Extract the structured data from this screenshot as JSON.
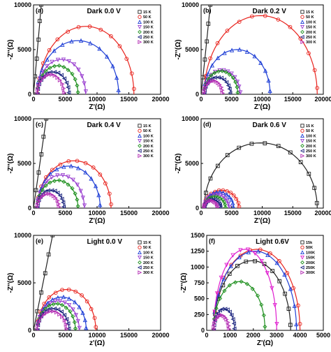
{
  "figure": {
    "panels_desc": "Six Nyquist impedance panels"
  },
  "chart_data": [
    {
      "type": "scatter",
      "panel_label": "(a)",
      "condition": "Dark 0.0 V",
      "xlabel": "Z'(Ω)",
      "ylabel": "-Z''(Ω)",
      "xlim": [
        0,
        20000
      ],
      "ylim": [
        0,
        10000
      ],
      "xticks": [
        "0",
        "5000",
        "10000",
        "15000",
        "20000"
      ],
      "yticks": [
        "0",
        "5000",
        "10000"
      ],
      "legend_position": "upper right",
      "series": [
        {
          "name": "15 K",
          "marker": "square",
          "color": "#222222",
          "type": "line",
          "x": [
            0,
            250,
            500,
            750,
            1000,
            1200
          ],
          "y": [
            0,
            2000,
            4000,
            6100,
            8200,
            10000
          ]
        },
        {
          "name": "50 K",
          "marker": "circle",
          "color": "#e8231d",
          "type": "arc",
          "x0": 700,
          "x1": 15800,
          "ymax": 7600
        },
        {
          "name": "100 K",
          "marker": "triangle",
          "color": "#1f3fd6",
          "type": "arc",
          "x0": 600,
          "x1": 13400,
          "ymax": 6000
        },
        {
          "name": "150 K",
          "marker": "tri-down",
          "color": "#9a3fd0",
          "type": "arc",
          "x0": 600,
          "x1": 8200,
          "ymax": 3900
        },
        {
          "name": "200 K",
          "marker": "diamond",
          "color": "#1d8f1d",
          "type": "arc",
          "x0": 600,
          "x1": 7000,
          "ymax": 3200
        },
        {
          "name": "250 K",
          "marker": "tri-left",
          "color": "#1a237e",
          "type": "arc",
          "x0": 600,
          "x1": 5600,
          "ymax": 2500
        },
        {
          "name": "300 K",
          "marker": "tri-right",
          "color": "#b42fb4",
          "type": "arc",
          "x0": 600,
          "x1": 4800,
          "ymax": 2200
        }
      ]
    },
    {
      "type": "scatter",
      "panel_label": "(b)",
      "condition": "Dark 0.2 V",
      "xlabel": "Z'(Ω)",
      "ylabel": "-Z''(Ω)",
      "xlim": [
        0,
        20000
      ],
      "ylim": [
        0,
        10000
      ],
      "xticks": [
        "0",
        "5000",
        "10000",
        "15000",
        "20000"
      ],
      "yticks": [
        "0",
        "5000",
        "10000"
      ],
      "legend_position": "upper right",
      "series": [
        {
          "name": "15 K",
          "marker": "square",
          "color": "#222222",
          "type": "line",
          "x": [
            0,
            300,
            600,
            900,
            1200,
            1500
          ],
          "y": [
            0,
            1900,
            3900,
            5900,
            7900,
            10000
          ]
        },
        {
          "name": "50 K",
          "marker": "circle",
          "color": "#e8231d",
          "type": "arc",
          "x0": 500,
          "x1": 19000,
          "ymax": 8800
        },
        {
          "name": "100 K",
          "marker": "triangle",
          "color": "#1f3fd6",
          "type": "arc",
          "x0": 500,
          "x1": 11300,
          "ymax": 5000
        },
        {
          "name": "150 K",
          "marker": "tri-down",
          "color": "#9a3fd0",
          "type": "arc",
          "x0": 500,
          "x1": 6400,
          "ymax": 2700
        },
        {
          "name": "200 K",
          "marker": "diamond",
          "color": "#1d8f1d",
          "type": "arc",
          "x0": 500,
          "x1": 6000,
          "ymax": 2600
        },
        {
          "name": "250 K",
          "marker": "tri-left",
          "color": "#1a237e",
          "type": "arc",
          "x0": 500,
          "x1": 4800,
          "ymax": 1900
        },
        {
          "name": "300 K",
          "marker": "tri-right",
          "color": "#b42fb4",
          "type": "arc",
          "x0": 500,
          "x1": 3500,
          "ymax": 1500
        }
      ]
    },
    {
      "type": "scatter",
      "panel_label": "(c)",
      "condition": "Dark 0.4 V",
      "xlabel": "Z'(Ω)",
      "ylabel": "-Z''(Ω)",
      "xlim": [
        0,
        20000
      ],
      "ylim": [
        0,
        10000
      ],
      "xticks": [
        "0",
        "5000",
        "10000",
        "15000",
        "20000"
      ],
      "yticks": [
        "0",
        "5000",
        "10000"
      ],
      "legend_position": "right",
      "series": [
        {
          "name": "15 K",
          "marker": "square",
          "color": "#222222",
          "type": "line",
          "x": [
            0,
            400,
            800,
            1200,
            1600,
            2000
          ],
          "y": [
            0,
            2000,
            4000,
            6000,
            8000,
            10000
          ]
        },
        {
          "name": "50 K",
          "marker": "circle",
          "color": "#e8231d",
          "type": "arc",
          "x0": 600,
          "x1": 12200,
          "ymax": 5300
        },
        {
          "name": "100 K",
          "marker": "triangle",
          "color": "#1f3fd6",
          "type": "arc",
          "x0": 600,
          "x1": 10500,
          "ymax": 4700
        },
        {
          "name": "150 K",
          "marker": "tri-down",
          "color": "#9a3fd0",
          "type": "arc",
          "x0": 600,
          "x1": 8000,
          "ymax": 3700
        },
        {
          "name": "200 K",
          "marker": "diamond",
          "color": "#1d8f1d",
          "type": "arc",
          "x0": 600,
          "x1": 7000,
          "ymax": 3100
        },
        {
          "name": "250 K",
          "marker": "tri-left",
          "color": "#1a237e",
          "type": "arc",
          "x0": 600,
          "x1": 4800,
          "ymax": 2000
        },
        {
          "name": "300 K",
          "marker": "tri-right",
          "color": "#b42fb4",
          "type": "arc",
          "x0": 600,
          "x1": 4000,
          "ymax": 1600
        }
      ]
    },
    {
      "type": "scatter",
      "panel_label": "(d)",
      "condition": "Dark 0.6 V",
      "xlabel": "Z'(Ω)",
      "ylabel": "-Z''(Ω)",
      "xlim": [
        0,
        20000
      ],
      "ylim": [
        0,
        10000
      ],
      "xticks": [
        "0",
        "5000",
        "10000",
        "15000",
        "20000"
      ],
      "yticks": [
        "0",
        "5000",
        "10000"
      ],
      "legend_position": "right",
      "series": [
        {
          "name": "15 K",
          "marker": "square",
          "color": "#222222",
          "type": "arc",
          "x0": 500,
          "x1": 19000,
          "ymax": 7300
        },
        {
          "name": "50 K",
          "marker": "circle",
          "color": "#e8231d",
          "type": "arc",
          "x0": 500,
          "x1": 6200,
          "ymax": 2000
        },
        {
          "name": "100 K",
          "marker": "triangle",
          "color": "#1f3fd6",
          "type": "arc",
          "x0": 500,
          "x1": 5300,
          "ymax": 1800
        },
        {
          "name": "150 K",
          "marker": "tri-down",
          "color": "#9a3fd0",
          "type": "arc",
          "x0": 500,
          "x1": 4600,
          "ymax": 1500
        },
        {
          "name": "200 K",
          "marker": "diamond",
          "color": "#1d8f1d",
          "type": "arc",
          "x0": 500,
          "x1": 4000,
          "ymax": 1300
        },
        {
          "name": "250 K",
          "marker": "tri-left",
          "color": "#1a237e",
          "type": "arc",
          "x0": 500,
          "x1": 3200,
          "ymax": 1000
        },
        {
          "name": "300 K",
          "marker": "tri-right",
          "color": "#b42fb4",
          "type": "arc",
          "x0": 500,
          "x1": 2700,
          "ymax": 850
        }
      ]
    },
    {
      "type": "scatter",
      "panel_label": "(e)",
      "condition": "Light  0.0 V",
      "xlabel": "z'(Ω)",
      "ylabel": "-Z''(Ω)",
      "xlim": [
        0,
        20000
      ],
      "ylim": [
        0,
        10000
      ],
      "xticks": [
        "0",
        "5000",
        "10000",
        "15000",
        "20000"
      ],
      "yticks": [
        "0",
        "5000",
        "10000"
      ],
      "legend_position": "right",
      "series": [
        {
          "name": "15 K",
          "marker": "square",
          "color": "#222222",
          "type": "line",
          "x": [
            0,
            600,
            1200,
            1800,
            2400,
            3000
          ],
          "y": [
            0,
            2000,
            4000,
            6000,
            8000,
            10000
          ]
        },
        {
          "name": "50 K",
          "marker": "circle",
          "color": "#e8231d",
          "type": "arc",
          "x0": 600,
          "x1": 9800,
          "ymax": 4300
        },
        {
          "name": "100 K",
          "marker": "triangle",
          "color": "#1f3fd6",
          "type": "arc",
          "x0": 600,
          "x1": 8300,
          "ymax": 3500
        },
        {
          "name": "150 K",
          "marker": "tri-down",
          "color": "#9a3fd0",
          "type": "arc",
          "x0": 600,
          "x1": 7200,
          "ymax": 3100
        },
        {
          "name": "200 K",
          "marker": "diamond",
          "color": "#1d8f1d",
          "type": "arc",
          "x0": 600,
          "x1": 6600,
          "ymax": 2800
        },
        {
          "name": "250 K",
          "marker": "tri-left",
          "color": "#1a237e",
          "type": "arc",
          "x0": 600,
          "x1": 5600,
          "ymax": 2300
        },
        {
          "name": "300 K",
          "marker": "tri-right",
          "color": "#b42fb4",
          "type": "arc",
          "x0": 600,
          "x1": 5200,
          "ymax": 2000
        }
      ]
    },
    {
      "type": "scatter",
      "panel_label": "(f)",
      "condition": "Light 0.6V",
      "xlabel": "Z'(Ω)",
      "ylabel": "-Z''(Ω)",
      "xlim": [
        0,
        5000
      ],
      "ylim": [
        0,
        1500
      ],
      "xticks": [
        "0",
        "1000",
        "2000",
        "3000",
        "4000",
        "5000"
      ],
      "yticks": [
        "0",
        "250",
        "500",
        "750",
        "1000",
        "1250",
        "1500"
      ],
      "legend_position": "right",
      "series": [
        {
          "name": "15k",
          "marker": "square",
          "color": "#222222",
          "type": "arc",
          "x0": 300,
          "x1": 3600,
          "ymax": 1100
        },
        {
          "name": "50K",
          "marker": "circle",
          "color": "#e8231d",
          "type": "arc",
          "x0": 300,
          "x1": 4000,
          "ymax": 1280
        },
        {
          "name": "100K",
          "marker": "triangle",
          "color": "#1f3fd6",
          "type": "arc",
          "x0": 300,
          "x1": 3850,
          "ymax": 1250
        },
        {
          "name": "150K",
          "marker": "tri-down",
          "color": "#e020d0",
          "type": "arc",
          "x0": 300,
          "x1": 3000,
          "ymax": 1280
        },
        {
          "name": "200K",
          "marker": "diamond",
          "color": "#1d8f1d",
          "type": "arc",
          "x0": 300,
          "x1": 2500,
          "ymax": 770
        },
        {
          "name": "250K",
          "marker": "tri-left",
          "color": "#1a237e",
          "type": "arc",
          "x0": 300,
          "x1": 1200,
          "ymax": 340
        },
        {
          "name": "300K",
          "marker": "tri-right",
          "color": "#b42fb4",
          "type": "arc",
          "x0": 300,
          "x1": 950,
          "ymax": 240
        }
      ]
    }
  ]
}
